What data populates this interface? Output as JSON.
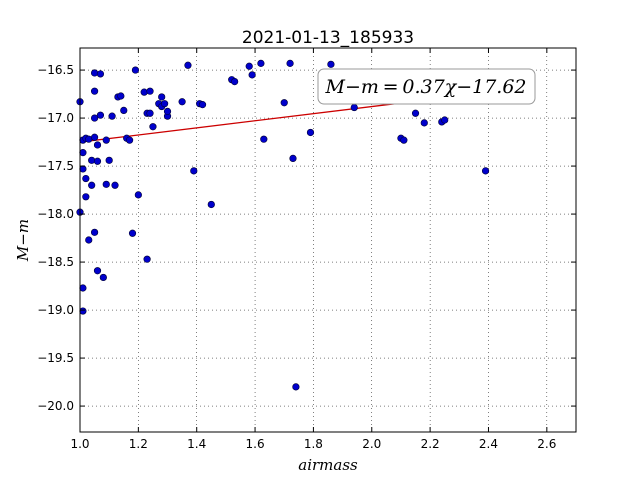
{
  "chart_data": {
    "type": "scatter",
    "title": "2021-01-13_185933",
    "xlabel": "airmass",
    "ylabel": "M−m",
    "xlim": [
      1.0,
      2.7
    ],
    "ylim": [
      -20.27,
      -16.27
    ],
    "xticks": [
      1.0,
      1.2,
      1.4,
      1.6,
      1.8,
      2.0,
      2.2,
      2.4,
      2.6
    ],
    "xtick_labels": [
      "1.0",
      "1.2",
      "1.4",
      "1.6",
      "1.8",
      "2.0",
      "2.2",
      "2.4",
      "2.6"
    ],
    "yticks": [
      -16.5,
      -17.0,
      -17.5,
      -18.0,
      -18.5,
      -19.0,
      -19.5,
      -20.0
    ],
    "ytick_labels": [
      "−16.5",
      "−17.0",
      "−17.5",
      "−18.0",
      "−18.5",
      "−19.0",
      "−19.5",
      "−20.0"
    ],
    "grid": true,
    "point_color": "#0000cc",
    "fit_color": "#cc0000",
    "fit": {
      "slope": 0.37,
      "intercept": -17.62,
      "x_range": [
        1.0,
        2.12
      ]
    },
    "annotation": "M−m = 0.37χ−17.62",
    "annotation_position": "top-right",
    "points": [
      [
        1.0,
        -16.83
      ],
      [
        1.01,
        -17.23
      ],
      [
        1.02,
        -17.21
      ],
      [
        1.01,
        -17.36
      ],
      [
        1.0,
        -17.98
      ],
      [
        1.01,
        -17.53
      ],
      [
        1.02,
        -17.63
      ],
      [
        1.02,
        -17.82
      ],
      [
        1.03,
        -18.27
      ],
      [
        1.01,
        -18.77
      ],
      [
        1.01,
        -19.01
      ],
      [
        1.03,
        -17.22
      ],
      [
        1.04,
        -17.44
      ],
      [
        1.04,
        -17.7
      ],
      [
        1.05,
        -17.2
      ],
      [
        1.05,
        -17.0
      ],
      [
        1.05,
        -16.72
      ],
      [
        1.05,
        -16.53
      ],
      [
        1.06,
        -17.28
      ],
      [
        1.06,
        -17.45
      ],
      [
        1.07,
        -16.97
      ],
      [
        1.07,
        -16.54
      ],
      [
        1.05,
        -18.19
      ],
      [
        1.06,
        -18.59
      ],
      [
        1.08,
        -18.66
      ],
      [
        1.09,
        -17.23
      ],
      [
        1.1,
        -17.44
      ],
      [
        1.09,
        -17.69
      ],
      [
        1.11,
        -16.98
      ],
      [
        1.12,
        -17.7
      ],
      [
        1.13,
        -16.78
      ],
      [
        1.14,
        -16.77
      ],
      [
        1.15,
        -16.92
      ],
      [
        1.16,
        -17.21
      ],
      [
        1.17,
        -17.23
      ],
      [
        1.18,
        -18.2
      ],
      [
        1.19,
        -16.5
      ],
      [
        1.2,
        -17.8
      ],
      [
        1.22,
        -16.73
      ],
      [
        1.23,
        -16.95
      ],
      [
        1.24,
        -16.72
      ],
      [
        1.24,
        -16.95
      ],
      [
        1.25,
        -17.09
      ],
      [
        1.23,
        -18.47
      ],
      [
        1.27,
        -16.85
      ],
      [
        1.28,
        -16.88
      ],
      [
        1.28,
        -16.78
      ],
      [
        1.29,
        -16.85
      ],
      [
        1.3,
        -16.98
      ],
      [
        1.3,
        -16.93
      ],
      [
        1.35,
        -16.83
      ],
      [
        1.37,
        -16.45
      ],
      [
        1.39,
        -17.55
      ],
      [
        1.41,
        -16.85
      ],
      [
        1.42,
        -16.86
      ],
      [
        1.45,
        -17.9
      ],
      [
        1.52,
        -16.6
      ],
      [
        1.53,
        -16.62
      ],
      [
        1.58,
        -16.46
      ],
      [
        1.59,
        -16.55
      ],
      [
        1.62,
        -16.43
      ],
      [
        1.63,
        -17.22
      ],
      [
        1.7,
        -16.84
      ],
      [
        1.72,
        -16.43
      ],
      [
        1.73,
        -17.42
      ],
      [
        1.74,
        -19.8
      ],
      [
        1.79,
        -17.15
      ],
      [
        1.86,
        -16.44
      ],
      [
        1.94,
        -16.89
      ],
      [
        2.1,
        -17.21
      ],
      [
        2.11,
        -17.23
      ],
      [
        2.15,
        -16.95
      ],
      [
        2.18,
        -17.05
      ],
      [
        2.24,
        -17.04
      ],
      [
        2.25,
        -17.02
      ],
      [
        2.39,
        -17.55
      ]
    ]
  }
}
